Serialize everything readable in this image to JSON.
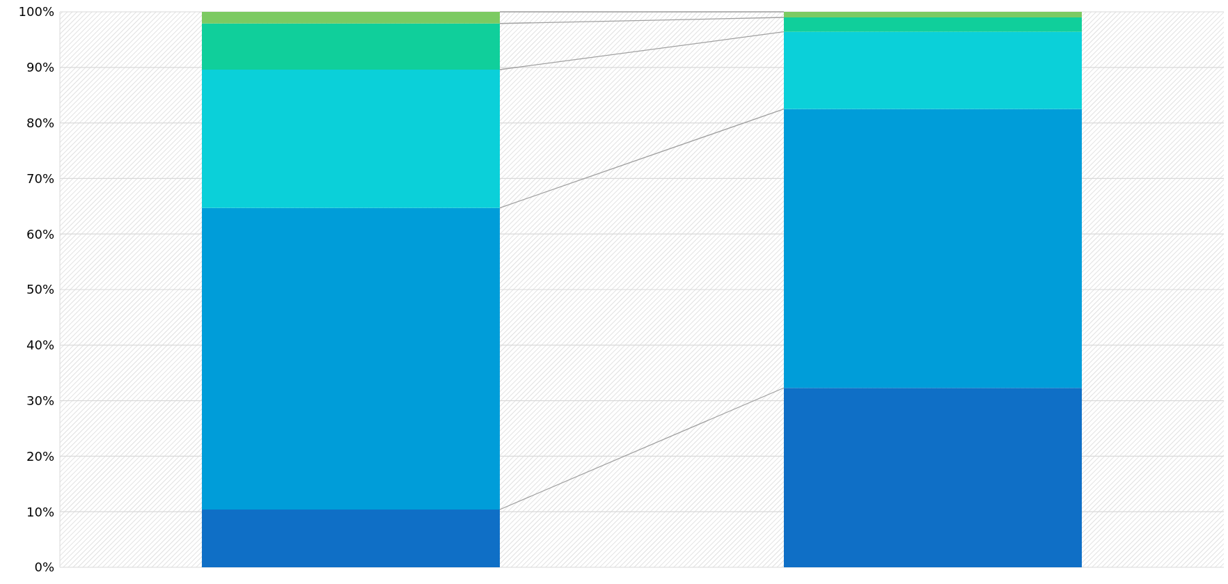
{
  "chart_data": {
    "type": "bar",
    "stacked": true,
    "categories": [
      null,
      null
    ],
    "series": [
      {
        "color": "#0f6fc6",
        "values": [
          10.4,
          32.3
        ]
      },
      {
        "color": "#009dd9",
        "values": [
          54.3,
          50.2
        ]
      },
      {
        "color": "#0bd0d9",
        "values": [
          24.9,
          13.9
        ]
      },
      {
        "color": "#10cf9b",
        "values": [
          8.3,
          2.6
        ]
      },
      {
        "color": "#7cca62",
        "values": [
          2.1,
          1.0
        ]
      }
    ],
    "ylim": [
      0,
      100
    ],
    "yticks": [
      {
        "value": 0,
        "label": "0%"
      },
      {
        "value": 10,
        "label": "10%"
      },
      {
        "value": 20,
        "label": "20%"
      },
      {
        "value": 30,
        "label": "30%"
      },
      {
        "value": 40,
        "label": "40%"
      },
      {
        "value": 50,
        "label": "50%"
      },
      {
        "value": 60,
        "label": "60%"
      },
      {
        "value": 70,
        "label": "70%"
      },
      {
        "value": 80,
        "label": "80%"
      },
      {
        "value": 90,
        "label": "90%"
      },
      {
        "value": 100,
        "label": "100%"
      }
    ],
    "grid": "y"
  }
}
